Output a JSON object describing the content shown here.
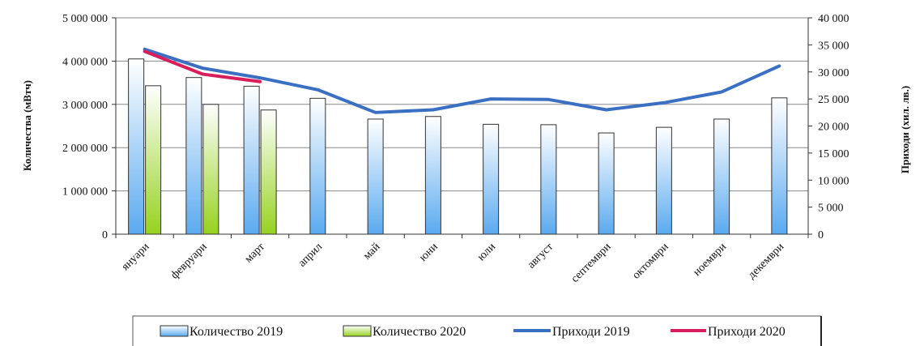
{
  "chart_data": {
    "type": "bar",
    "title": "",
    "ylabel": "Количества (мВтч)",
    "y2label": "Приходи (хил. лв.)",
    "ylim": [
      0,
      5000000
    ],
    "y2lim": [
      0,
      40000
    ],
    "y_ticks": [
      "0",
      "1 000 000",
      "2 000 000",
      "3 000 000",
      "4 000 000",
      "5 000 000"
    ],
    "y2_ticks": [
      "0",
      "5 000",
      "10 000",
      "15 000",
      "20 000",
      "25 000",
      "30 000",
      "35 000",
      "40 000"
    ],
    "categories": [
      "януари",
      "февруари",
      "март",
      "април",
      "май",
      "юни",
      "юли",
      "август",
      "септември",
      "октомври",
      "ноември",
      "декември"
    ],
    "bar_series": [
      {
        "name": "Количество 2019",
        "values": [
          4050000,
          3620000,
          3420000,
          3140000,
          2660000,
          2720000,
          2540000,
          2530000,
          2340000,
          2470000,
          2660000,
          3150000
        ]
      },
      {
        "name": "Количество 2020",
        "values": [
          3430000,
          3000000,
          2870000
        ]
      }
    ],
    "line_series": [
      {
        "name": "Приходи 2019",
        "axis": "right",
        "values": [
          34200,
          30700,
          28900,
          26700,
          22500,
          23000,
          25000,
          24900,
          23000,
          24300,
          26300,
          31100
        ]
      },
      {
        "name": "Приходи 2020",
        "axis": "right",
        "values": [
          33800,
          29600,
          28200
        ]
      }
    ],
    "legend": {
      "position": "bottom",
      "items": [
        "Количество 2019",
        "Количество 2020",
        "Приходи 2019",
        "Приходи 2020"
      ]
    },
    "colors": {
      "bar2019_top": "#ffffff",
      "bar2019_bottom": "#5aaaf0",
      "bar2020_top": "#ffffff",
      "bar2020_bottom": "#96d21e",
      "line2019": "#3b6fc2",
      "line2020": "#d81e5b",
      "grid": "#888888"
    },
    "grid": "horizontal"
  }
}
